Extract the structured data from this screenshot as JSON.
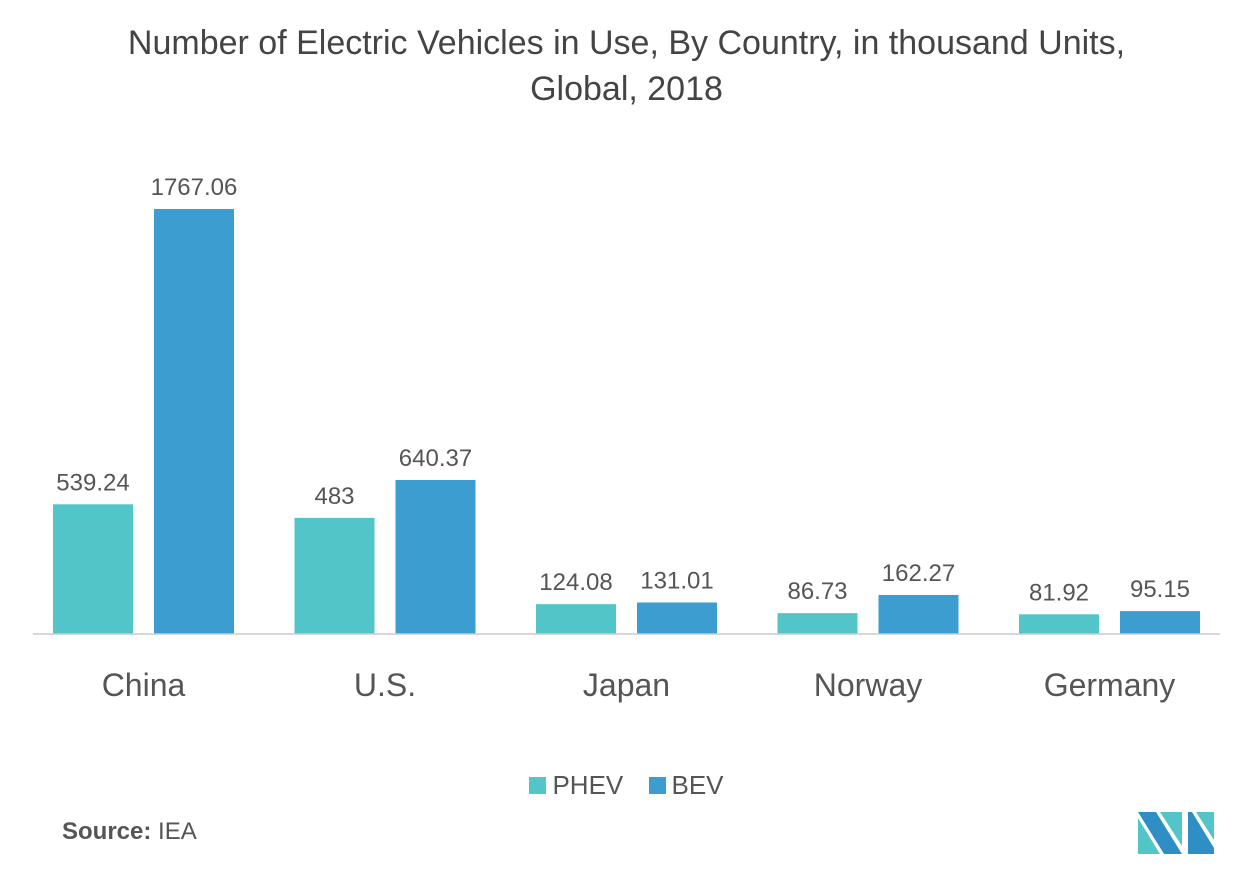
{
  "chart_data": {
    "type": "bar",
    "title": "Number of Electric Vehicles in Use, By Country, in thousand Units, Global, 2018",
    "title_lines": [
      "Number of Electric Vehicles in Use, By Country, in thousand Units,",
      "Global, 2018"
    ],
    "categories": [
      "China",
      "U.S.",
      "Japan",
      "Norway",
      "Germany"
    ],
    "series": [
      {
        "name": "PHEV",
        "color": "#52c5c9",
        "values": [
          539.24,
          483,
          124.08,
          86.73,
          81.92
        ],
        "labels": [
          "539.24",
          "483",
          "124.08",
          "86.73",
          "81.92"
        ]
      },
      {
        "name": "BEV",
        "color": "#3c9dd0",
        "values": [
          1767.06,
          640.37,
          131.01,
          162.27,
          95.15
        ],
        "labels": [
          "1767.06",
          "640.37",
          "131.01",
          "162.27",
          "95.15"
        ]
      }
    ],
    "ylim": [
      0,
      1767.06
    ],
    "grid": false,
    "legend": "bottom-center"
  },
  "source": {
    "label": "Source:",
    "value": "IEA"
  }
}
